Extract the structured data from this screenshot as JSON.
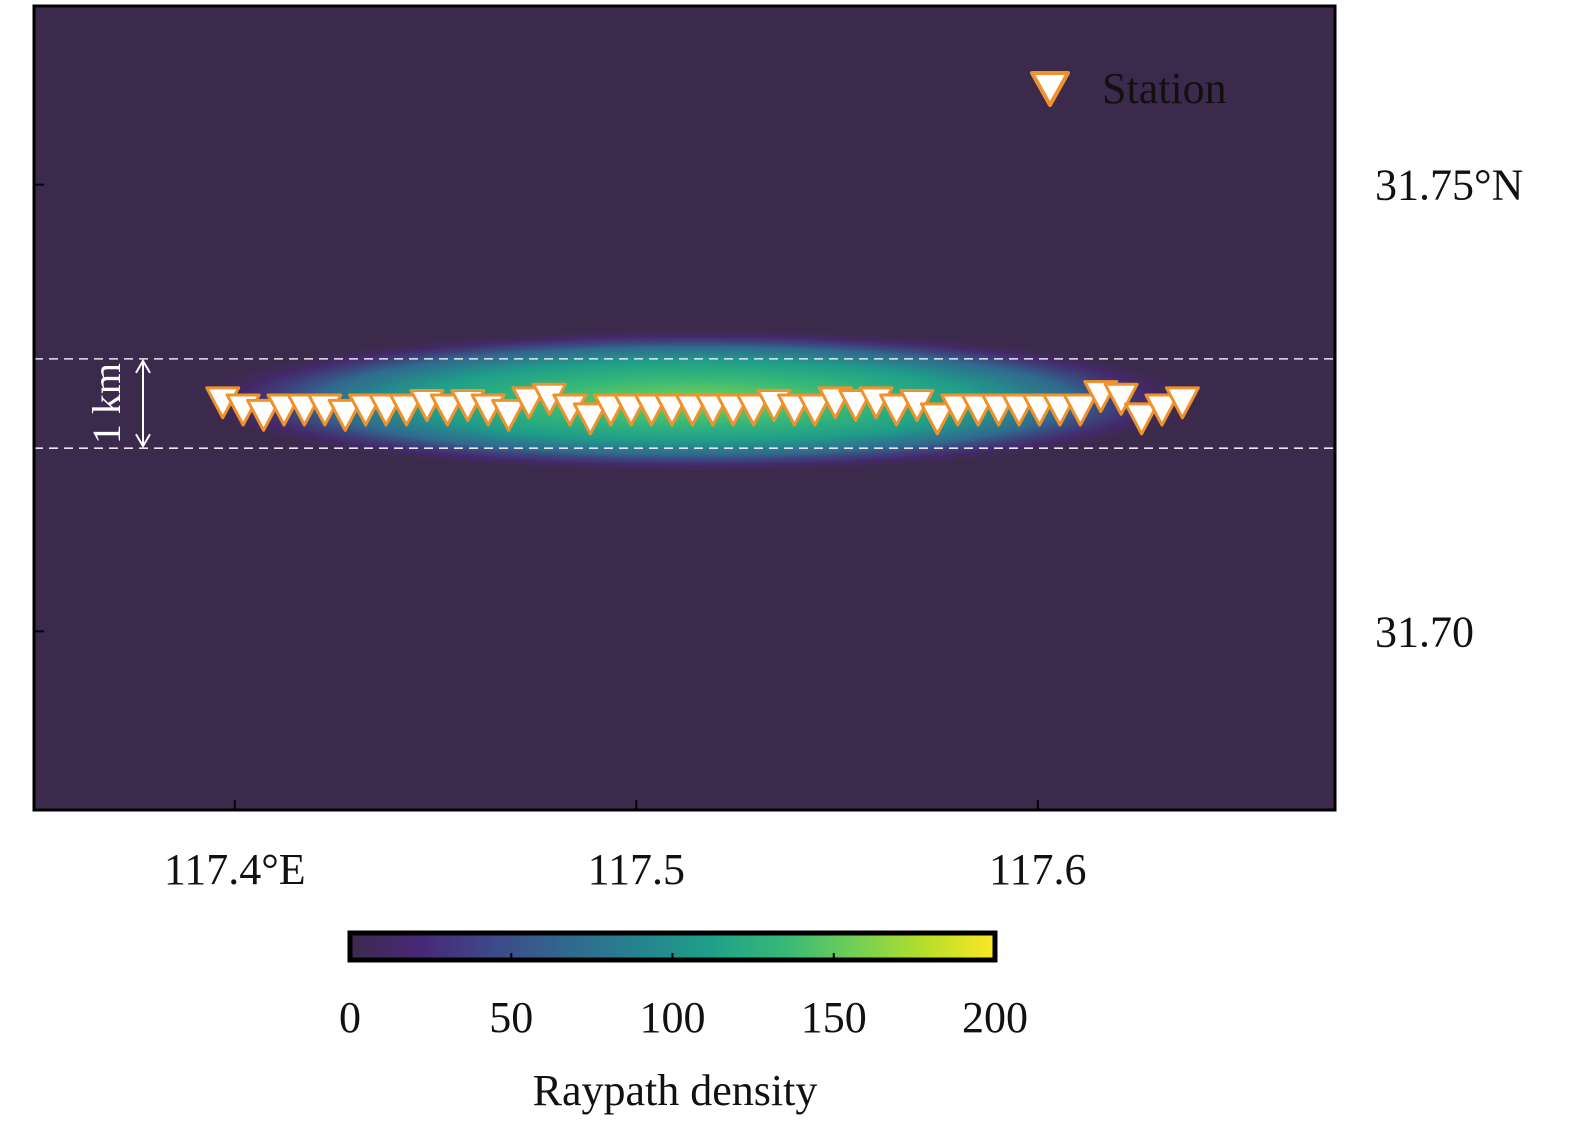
{
  "chart_data": {
    "type": "heatmap",
    "x_tick_labels": [
      "117.4°E",
      "117.5",
      "117.6"
    ],
    "x_ticks": [
      117.4,
      117.5,
      117.6
    ],
    "xlim": [
      117.35,
      117.674
    ],
    "y_tick_labels": [
      "31.75°N",
      "31.70"
    ],
    "y_ticks": [
      31.75,
      31.7
    ],
    "ylim": [
      31.68,
      31.77
    ],
    "grid": false,
    "legend": {
      "placement": "top-right",
      "entries": [
        {
          "label": "Station",
          "marker": "inverted-triangle",
          "fill": "#ffffff",
          "edge": "#f0922b"
        }
      ]
    },
    "colorbar": {
      "label": "Raypath density",
      "range": [
        0,
        200
      ],
      "tick_labels": [
        "0",
        "50",
        "100",
        "150",
        "200"
      ],
      "ticks": [
        0,
        50,
        100,
        150,
        200
      ],
      "colormap": [
        "#3c2a4d",
        "#482878",
        "#3e4989",
        "#31688e",
        "#26828e",
        "#1f9e89",
        "#35b779",
        "#6ece58",
        "#b5de2b",
        "#fde725"
      ]
    },
    "density_band": {
      "x_range": [
        117.397,
        117.633
      ],
      "center_lat": 31.7258,
      "peak_density": 150,
      "background": "#3c2a4d"
    },
    "scale_bar": {
      "label": "1 km",
      "lat_range": [
        31.7205,
        31.7305
      ]
    },
    "stations": {
      "count": 48,
      "lon_range": [
        117.397,
        117.636
      ],
      "lat_values": [
        31.7258,
        31.725,
        31.7244,
        31.725,
        31.725,
        31.725,
        31.7244,
        31.725,
        31.725,
        31.725,
        31.7255,
        31.725,
        31.7255,
        31.725,
        31.7244,
        31.7258,
        31.7262,
        31.725,
        31.724,
        31.725,
        31.725,
        31.725,
        31.725,
        31.725,
        31.725,
        31.725,
        31.725,
        31.7255,
        31.725,
        31.725,
        31.7258,
        31.7255,
        31.7258,
        31.725,
        31.7255,
        31.724,
        31.725,
        31.725,
        31.725,
        31.725,
        31.725,
        31.725,
        31.725,
        31.7265,
        31.7262,
        31.724,
        31.725,
        31.7258
      ]
    }
  }
}
